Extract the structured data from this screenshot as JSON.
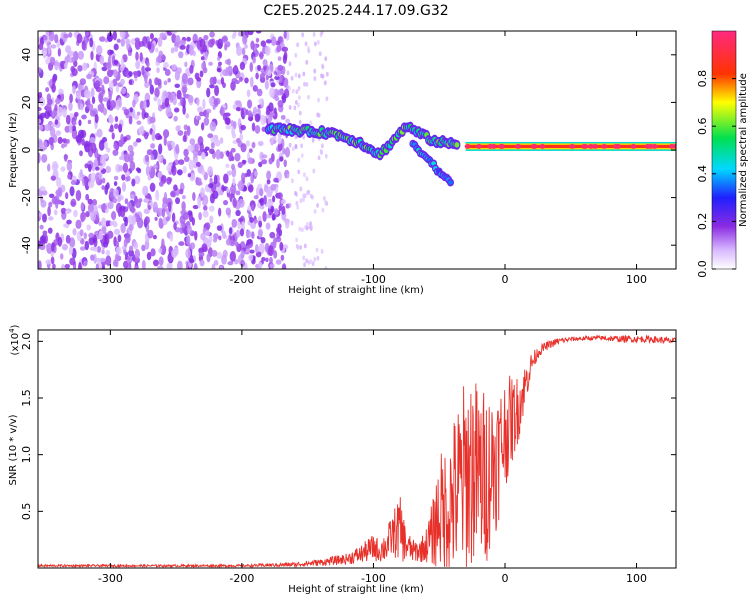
{
  "title": "C2E5.2025.244.17.09.G32",
  "chart_data": [
    {
      "type": "heatmap",
      "title": "C2E5.2025.244.17.09.G32",
      "xlabel": "Height of straight line (km)",
      "ylabel": "Frequency (Hz)",
      "xlim": [
        -355,
        130
      ],
      "ylim": [
        -50,
        50
      ],
      "x_ticks": [
        "-300",
        "-200",
        "-100",
        "0",
        "100"
      ],
      "y_ticks": [
        "40",
        "20",
        "0",
        "-20",
        "-40"
      ],
      "colorbar": {
        "label": "Normalized spectral amplitude",
        "range": [
          0,
          1
        ],
        "ticks": [
          "0.0",
          "0.2",
          "0.4",
          "0.6",
          "0.8"
        ],
        "colormap": "white-purple-blue-cyan-green-yellow-red-pink"
      },
      "features": [
        {
          "name": "broadband noise",
          "x_range": [
            -355,
            -165
          ],
          "y_range": [
            -50,
            50
          ],
          "amplitude": 0.1
        },
        {
          "name": "signal track",
          "points": [
            {
              "x": -180,
              "y": 9
            },
            {
              "x": -150,
              "y": 8
            },
            {
              "x": -130,
              "y": 7
            },
            {
              "x": -110,
              "y": 3
            },
            {
              "x": -95,
              "y": -2
            },
            {
              "x": -75,
              "y": 10
            },
            {
              "x": -55,
              "y": 4
            },
            {
              "x": -35,
              "y": 2
            },
            {
              "x": 0,
              "y": 1.5
            },
            {
              "x": 50,
              "y": 1.5
            },
            {
              "x": 130,
              "y": 1.5
            }
          ]
        },
        {
          "name": "lower branch",
          "points": [
            {
              "x": -70,
              "y": 3
            },
            {
              "x": -60,
              "y": -3
            },
            {
              "x": -50,
              "y": -9
            },
            {
              "x": -40,
              "y": -15
            }
          ]
        },
        {
          "name": "steady carrier",
          "x_range": [
            -30,
            130
          ],
          "y": 1.5,
          "amplitude": 1.0
        }
      ]
    },
    {
      "type": "line",
      "xlabel": "Height of straight line (km)",
      "ylabel": "SNR (10 * v/v)",
      "y_multiplier": "(x10",
      "y_multiplier_exp": "4",
      "xlim": [
        -355,
        130
      ],
      "ylim": [
        0,
        2.1
      ],
      "x_ticks": [
        "-300",
        "-200",
        "-100",
        "0",
        "100"
      ],
      "y_ticks": [
        "2.0",
        "1.5",
        "1.0",
        "0.5"
      ],
      "color": "#e8302a",
      "envelope": {
        "x": [
          -355,
          -200,
          -160,
          -140,
          -120,
          -110,
          -105,
          -100,
          -95,
          -90,
          -85,
          -80,
          -75,
          -70,
          -65,
          -60,
          -55,
          -50,
          -45,
          -40,
          -35,
          -30,
          -25,
          -20,
          -15,
          -10,
          -5,
          0,
          5,
          10,
          15,
          20,
          25,
          30,
          40,
          50,
          70,
          90,
          110,
          130
        ],
        "base": [
          0.02,
          0.02,
          0.03,
          0.05,
          0.08,
          0.12,
          0.15,
          0.18,
          0.15,
          0.2,
          0.3,
          0.35,
          0.2,
          0.15,
          0.15,
          0.2,
          0.3,
          0.5,
          0.5,
          0.6,
          0.7,
          0.8,
          0.9,
          0.8,
          0.8,
          0.9,
          1.0,
          1.2,
          1.3,
          1.4,
          1.6,
          1.8,
          1.9,
          1.95,
          2.0,
          2.02,
          2.03,
          2.02,
          2.02,
          2.0
        ],
        "spread": [
          0.01,
          0.01,
          0.02,
          0.03,
          0.05,
          0.08,
          0.1,
          0.12,
          0.1,
          0.15,
          0.2,
          0.3,
          0.15,
          0.1,
          0.1,
          0.15,
          0.3,
          0.5,
          0.6,
          0.7,
          0.8,
          0.9,
          0.9,
          0.8,
          0.8,
          0.7,
          0.6,
          0.5,
          0.4,
          0.3,
          0.2,
          0.1,
          0.05,
          0.04,
          0.03,
          0.02,
          0.02,
          0.03,
          0.03,
          0.03
        ]
      }
    }
  ]
}
